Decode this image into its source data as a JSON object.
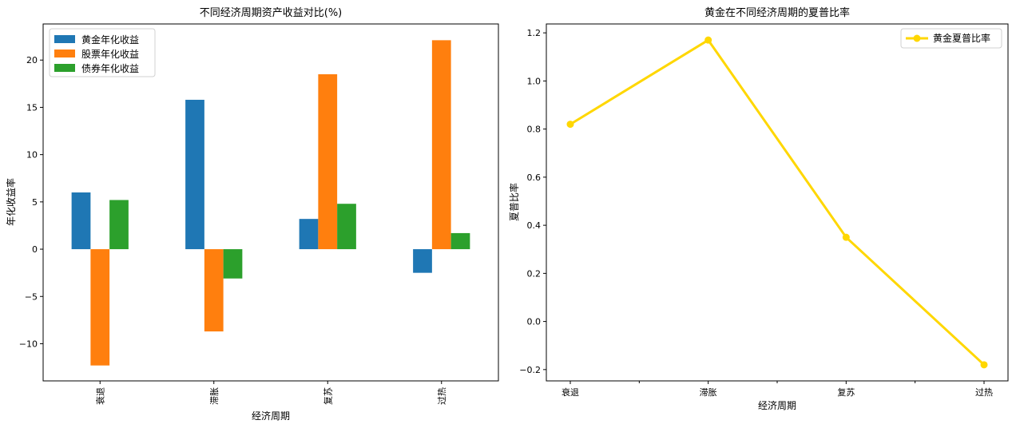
{
  "chart_data": [
    {
      "type": "bar",
      "title": "不同经济周期资产收益对比(%)",
      "xlabel": "经济周期",
      "ylabel": "年化收益率",
      "categories": [
        "衰退",
        "滞胀",
        "复苏",
        "过热"
      ],
      "series": [
        {
          "name": "黄金年化收益",
          "color": "#1f77b4",
          "values": [
            6.0,
            15.8,
            3.2,
            -2.5
          ]
        },
        {
          "name": "股票年化收益",
          "color": "#ff7f0e",
          "values": [
            -12.3,
            -8.7,
            18.5,
            22.1
          ]
        },
        {
          "name": "债券年化收益",
          "color": "#2ca02c",
          "values": [
            5.2,
            -3.1,
            4.8,
            1.7
          ]
        }
      ],
      "ylim": [
        -13.93,
        23.82
      ],
      "yticks": [
        -10,
        -5,
        0,
        5,
        10,
        15,
        20
      ],
      "ytick_labels": [
        "−10",
        "−5",
        "0",
        "5",
        "10",
        "15",
        "20"
      ],
      "grid": false,
      "legend": "upper left",
      "xtick_rotation": 90
    },
    {
      "type": "line",
      "title": "黄金在不同经济周期的夏普比率",
      "xlabel": "经济周期",
      "ylabel": "夏普比率",
      "categories": [
        "衰退",
        "滞胀",
        "复苏",
        "过热"
      ],
      "series": [
        {
          "name": "黄金夏普比率",
          "color": "#ffd700",
          "values": [
            0.82,
            1.17,
            0.35,
            -0.18
          ],
          "marker": "circle"
        }
      ],
      "ylim": [
        -0.247,
        1.237
      ],
      "yticks": [
        -0.2,
        0.0,
        0.2,
        0.4,
        0.6,
        0.8,
        1.0,
        1.2
      ],
      "ytick_labels": [
        "−0.2",
        "0.0",
        "0.2",
        "0.4",
        "0.6",
        "0.8",
        "1.0",
        "1.2"
      ],
      "grid": false,
      "legend": "upper right"
    }
  ]
}
